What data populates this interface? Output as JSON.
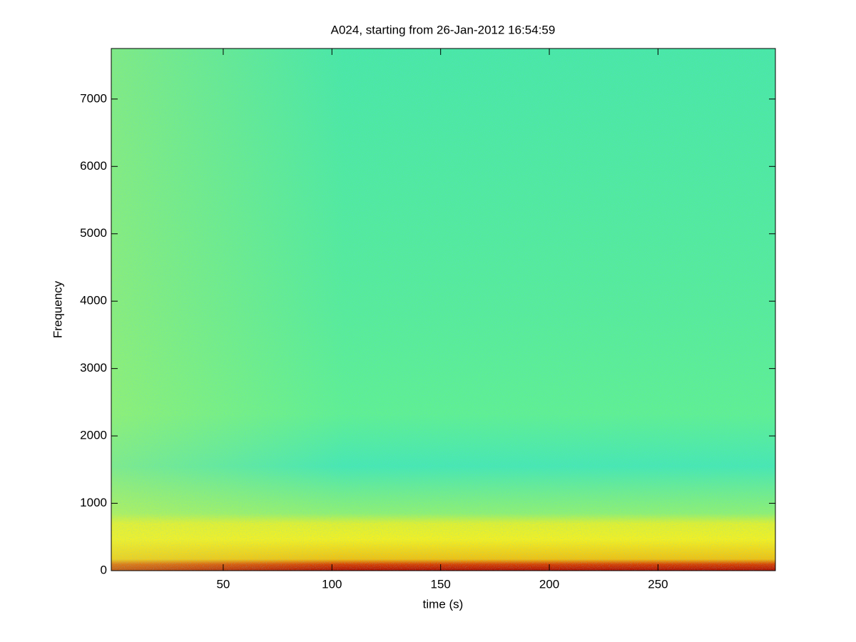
{
  "chart_data": {
    "type": "spectrogram",
    "title": "A024, starting from 26-Jan-2012 16:54:59",
    "xlabel": "time (s)",
    "ylabel": "Frequency",
    "xlim": [
      -1.5,
      304
    ],
    "ylim": [
      0,
      7750
    ],
    "xticks": [
      50,
      100,
      150,
      200,
      250
    ],
    "yticks": [
      0,
      1000,
      2000,
      3000,
      4000,
      5000,
      6000,
      7000
    ]
  }
}
